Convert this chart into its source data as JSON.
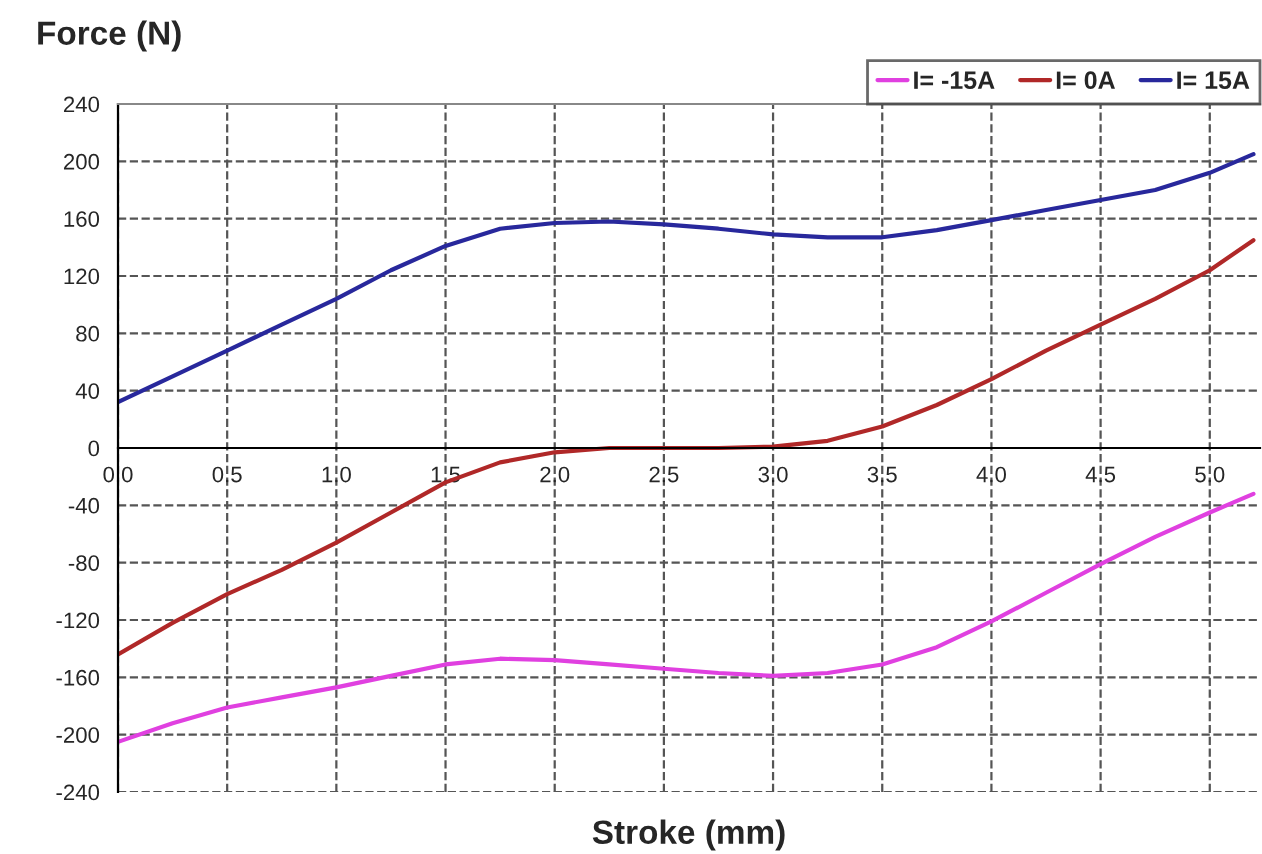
{
  "chart_data": {
    "type": "line",
    "ylabel": "Force (N)",
    "xlabel": "Stroke (mm)",
    "x": [
      0,
      0.25,
      0.5,
      0.75,
      1.0,
      1.25,
      1.5,
      1.75,
      2.0,
      2.25,
      2.5,
      2.75,
      3.0,
      3.25,
      3.5,
      3.75,
      4.0,
      4.25,
      4.5,
      4.75,
      5.0,
      5.2
    ],
    "series": [
      {
        "name": "I= -15A",
        "color": "#e040e0",
        "values": [
          -205,
          -192,
          -181,
          -174,
          -167,
          -159,
          -151,
          -147,
          -148,
          -151,
          -154,
          -157,
          -159,
          -157,
          -151,
          -139,
          -121,
          -101,
          -81,
          -62,
          -45,
          -32
        ]
      },
      {
        "name": "I= 0A",
        "color": "#b02828",
        "values": [
          -144,
          -122,
          -102,
          -85,
          -66,
          -45,
          -24,
          -10,
          -3,
          0,
          0,
          0,
          1,
          5,
          15,
          30,
          48,
          68,
          86,
          104,
          124,
          145
        ]
      },
      {
        "name": "I= 15A",
        "color": "#28289c",
        "values": [
          32,
          50,
          68,
          86,
          104,
          124,
          141,
          153,
          157,
          158,
          156,
          153,
          149,
          147,
          147,
          152,
          159,
          166,
          173,
          180,
          192,
          205
        ]
      }
    ],
    "xlim": [
      0,
      5.23
    ],
    "ylim": [
      -240,
      240
    ],
    "xticks": [
      {
        "value": 0,
        "label": "0.0"
      },
      0.5,
      {
        "value": 1,
        "label": "1.0"
      },
      1.5,
      {
        "value": 2,
        "label": "2.0"
      },
      2.5,
      {
        "value": 3,
        "label": "3.0"
      },
      3.5,
      {
        "value": 4,
        "label": "4.0"
      },
      4.5,
      {
        "value": 5,
        "label": "5.0"
      }
    ],
    "yticks": [
      -240,
      -200,
      -160,
      -120,
      -80,
      -40,
      0,
      40,
      80,
      120,
      160,
      200,
      240
    ],
    "grid": true,
    "legend": "top right",
    "marker": "none",
    "line_style": "solid"
  }
}
